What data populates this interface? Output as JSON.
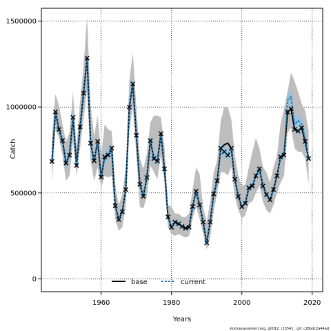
{
  "chart_data": {
    "type": "line",
    "xlabel": "Years",
    "ylabel": "Catch",
    "xlim": [
      1943,
      2023
    ],
    "ylim": [
      -75000,
      1575000
    ],
    "x_ticks": [
      1960,
      1980,
      2000,
      2020
    ],
    "y_ticks": [
      0,
      500000,
      1000000,
      1500000
    ],
    "grid": true,
    "legend_placement": "bottom-center",
    "x": [
      1946,
      1947,
      1948,
      1949,
      1950,
      1951,
      1952,
      1953,
      1954,
      1955,
      1956,
      1957,
      1958,
      1959,
      1960,
      1961,
      1962,
      1963,
      1964,
      1965,
      1966,
      1967,
      1968,
      1969,
      1970,
      1971,
      1972,
      1973,
      1974,
      1975,
      1976,
      1977,
      1978,
      1979,
      1980,
      1981,
      1982,
      1983,
      1984,
      1985,
      1986,
      1987,
      1988,
      1989,
      1990,
      1991,
      1992,
      1993,
      1994,
      1995,
      1996,
      1997,
      1998,
      1999,
      2000,
      2001,
      2002,
      2003,
      2004,
      2005,
      2006,
      2007,
      2008,
      2009,
      2010,
      2011,
      2012,
      2013,
      2014,
      2015,
      2016,
      2017,
      2018,
      2019
    ],
    "observed": [
      683000,
      972000,
      870000,
      805000,
      674000,
      720000,
      940000,
      660000,
      885000,
      1080000,
      1285000,
      790000,
      687000,
      800000,
      592000,
      710000,
      720000,
      760000,
      425000,
      345000,
      390000,
      520000,
      1000000,
      1135000,
      835000,
      550000,
      480000,
      590000,
      805000,
      700000,
      685000,
      845000,
      640000,
      360000,
      300000,
      330000,
      320000,
      305000,
      295000,
      300000,
      420000,
      510000,
      430000,
      330000,
      210000,
      330000,
      495000,
      570000,
      760000,
      740000,
      720000,
      760000,
      580000,
      480000,
      420000,
      440000,
      530000,
      540000,
      600000,
      640000,
      540000,
      490000,
      460000,
      520000,
      600000,
      710000,
      720000,
      970000,
      990000,
      870000,
      860000,
      880000,
      800000,
      700000
    ],
    "series": [
      {
        "name": "base",
        "color": "#000000",
        "values": [
          683000,
          972000,
          870000,
          805000,
          674000,
          720000,
          940000,
          660000,
          885000,
          1080000,
          1285000,
          790000,
          687000,
          800000,
          592000,
          710000,
          720000,
          760000,
          425000,
          345000,
          390000,
          520000,
          1000000,
          1135000,
          835000,
          550000,
          480000,
          590000,
          805000,
          700000,
          685000,
          845000,
          640000,
          360000,
          300000,
          330000,
          320000,
          305000,
          295000,
          300000,
          420000,
          510000,
          430000,
          330000,
          210000,
          330000,
          495000,
          570000,
          760000,
          780000,
          790000,
          760000,
          580000,
          480000,
          420000,
          440000,
          530000,
          540000,
          600000,
          640000,
          540000,
          490000,
          460000,
          520000,
          600000,
          710000,
          720000,
          970000,
          990000,
          870000,
          860000,
          880000,
          800000,
          700000
        ]
      },
      {
        "name": "current",
        "color": "#1f78b4",
        "values": [
          683000,
          972000,
          870000,
          805000,
          674000,
          720000,
          940000,
          660000,
          885000,
          1080000,
          1285000,
          790000,
          687000,
          800000,
          592000,
          710000,
          720000,
          760000,
          425000,
          345000,
          390000,
          520000,
          1000000,
          1135000,
          835000,
          550000,
          480000,
          590000,
          805000,
          700000,
          685000,
          845000,
          640000,
          360000,
          300000,
          330000,
          320000,
          305000,
          295000,
          300000,
          420000,
          510000,
          430000,
          330000,
          210000,
          330000,
          495000,
          570000,
          760000,
          740000,
          720000,
          760000,
          580000,
          480000,
          420000,
          440000,
          530000,
          540000,
          600000,
          640000,
          540000,
          490000,
          460000,
          520000,
          600000,
          710000,
          720000,
          1040000,
          1060000,
          900000,
          920000,
          900000,
          820000,
          700000
        ]
      }
    ],
    "band_base": {
      "lower": [
        560000,
        870000,
        820000,
        720000,
        570000,
        600000,
        800000,
        600000,
        760000,
        930000,
        1100000,
        690000,
        570000,
        650000,
        530000,
        600000,
        590000,
        600000,
        350000,
        280000,
        300000,
        420000,
        860000,
        1000000,
        720000,
        420000,
        410000,
        480000,
        660000,
        620000,
        580000,
        720000,
        560000,
        300000,
        260000,
        250000,
        260000,
        250000,
        240000,
        250000,
        350000,
        420000,
        350000,
        260000,
        170000,
        240000,
        390000,
        500000,
        620000,
        620000,
        600000,
        650000,
        480000,
        400000,
        350000,
        370000,
        440000,
        450000,
        500000,
        540000,
        450000,
        400000,
        380000,
        430000,
        500000,
        560000,
        600000,
        850000,
        880000,
        760000,
        740000,
        740000,
        700000,
        550000
      ],
      "upper": [
        820000,
        1075000,
        1010000,
        900000,
        800000,
        850000,
        1090000,
        760000,
        1030000,
        1240000,
        1530000,
        1010000,
        830000,
        950000,
        720000,
        900000,
        870000,
        860000,
        550000,
        430000,
        490000,
        650000,
        1150000,
        1320000,
        1000000,
        700000,
        640000,
        730000,
        910000,
        950000,
        950000,
        940000,
        770000,
        430000,
        420000,
        380000,
        380000,
        360000,
        360000,
        380000,
        520000,
        650000,
        610000,
        420000,
        330000,
        450000,
        620000,
        690000,
        920000,
        1000000,
        1000000,
        930000,
        720000,
        600000,
        540000,
        550000,
        650000,
        740000,
        820000,
        760000,
        650000,
        620000,
        560000,
        650000,
        720000,
        900000,
        990000,
        1090000,
        1200000,
        1150000,
        1090000,
        1020000,
        980000,
        860000
      ]
    },
    "band_current": {
      "lower": [
        640000,
        940000,
        850000,
        770000,
        630000,
        680000,
        890000,
        630000,
        840000,
        1030000,
        1230000,
        760000,
        650000,
        760000,
        570000,
        670000,
        680000,
        720000,
        400000,
        325000,
        365000,
        490000,
        960000,
        1090000,
        800000,
        520000,
        455000,
        560000,
        770000,
        670000,
        650000,
        810000,
        610000,
        340000,
        285000,
        310000,
        300000,
        290000,
        280000,
        285000,
        400000,
        485000,
        405000,
        310000,
        195000,
        310000,
        470000,
        545000,
        720000,
        700000,
        690000,
        730000,
        555000,
        460000,
        400000,
        420000,
        505000,
        515000,
        575000,
        610000,
        515000,
        465000,
        440000,
        495000,
        575000,
        680000,
        690000,
        990000,
        1010000,
        855000,
        850000,
        850000,
        760000,
        670000
      ],
      "upper": [
        720000,
        1000000,
        890000,
        840000,
        710000,
        760000,
        990000,
        690000,
        930000,
        1130000,
        1340000,
        820000,
        720000,
        840000,
        615000,
        750000,
        760000,
        800000,
        450000,
        365000,
        415000,
        550000,
        1040000,
        1180000,
        870000,
        580000,
        505000,
        620000,
        840000,
        730000,
        720000,
        880000,
        670000,
        380000,
        315000,
        350000,
        340000,
        320000,
        310000,
        315000,
        440000,
        535000,
        455000,
        350000,
        225000,
        350000,
        520000,
        595000,
        800000,
        780000,
        750000,
        790000,
        605000,
        500000,
        440000,
        460000,
        555000,
        565000,
        625000,
        670000,
        565000,
        515000,
        480000,
        545000,
        625000,
        740000,
        750000,
        1080000,
        1100000,
        940000,
        960000,
        940000,
        860000,
        730000
      ]
    }
  },
  "legend": {
    "base_label": "base",
    "current_label": "current"
  },
  "footer": {
    "note": "stockassessment.org, ghfj12, r13541 , git: c28bdc2a44ad"
  }
}
